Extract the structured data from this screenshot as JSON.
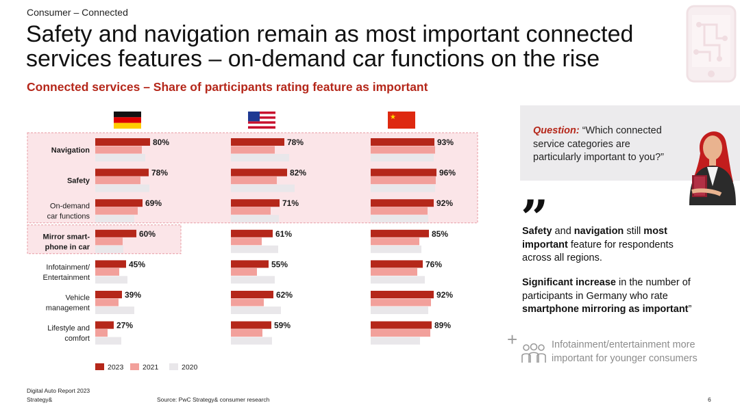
{
  "header": {
    "section": "Consumer – Connected",
    "title_line1": "Safety and navigation remain as most important connected",
    "title_line2": "services features – on-demand car functions on the rise",
    "subtitle": "Connected services – Share of participants rating feature as important"
  },
  "chart_data": {
    "type": "bar",
    "title": "Connected services – Share of participants rating feature as important",
    "categories": [
      [
        "Navigation"
      ],
      [
        "Safety"
      ],
      [
        "On-demand",
        "car functions"
      ],
      [
        "Mirror smart-",
        "phone in car"
      ],
      [
        "Infotainment/",
        "Entertainment"
      ],
      [
        "Vehicle",
        "management"
      ],
      [
        "Lifestyle and",
        "comfort"
      ]
    ],
    "bold_categories": [
      true,
      true,
      false,
      true,
      false,
      false,
      false
    ],
    "unit": "%",
    "legend": [
      "2023",
      "2021",
      "2020"
    ],
    "colors": {
      "2023": "#b5271a",
      "2021": "#f2a09b",
      "2020": "#e9e7ea"
    },
    "panels": [
      {
        "region": "Germany",
        "values_2023": [
          80,
          78,
          69,
          60,
          45,
          39,
          27
        ],
        "values_2021": [
          68,
          66,
          62,
          40,
          35,
          34,
          18
        ],
        "values_2020": [
          73,
          79,
          57,
          41,
          47,
          57,
          38
        ]
      },
      {
        "region": "USA",
        "values_2023": [
          78,
          82,
          71,
          61,
          55,
          62,
          59
        ],
        "values_2021": [
          64,
          67,
          58,
          45,
          38,
          48,
          46
        ],
        "values_2020": [
          85,
          93,
          70,
          69,
          64,
          73,
          60
        ]
      },
      {
        "region": "China",
        "values_2023": [
          93,
          96,
          92,
          85,
          76,
          92,
          89
        ],
        "values_2021": [
          94,
          95,
          83,
          71,
          68,
          88,
          87
        ],
        "values_2020": [
          92,
          94,
          84,
          74,
          79,
          84,
          72
        ]
      }
    ],
    "highlight_rows": [
      0,
      1,
      2
    ],
    "highlight_germany_row": 3
  },
  "question": {
    "label": "Question:",
    "line1": " “Which connected",
    "line2": "service categories are",
    "line3": "particularly important to you?”"
  },
  "insights": {
    "quote": "”",
    "p1_a": "Safety",
    "p1_b": " and ",
    "p1_c": "navigation",
    "p1_d": " still ",
    "p1_e": "most important",
    "p1_f": " feature for respondents across all regions.",
    "p2_a": "Significant increase",
    "p2_b": " in the number of participants in Germany who rate ",
    "p2_c": "smartphone mirroring as important",
    "p2_d": "”",
    "info_plus": "+",
    "info_text": "Infotainment/entertainment more important for younger consumers"
  },
  "footer": {
    "report": "Digital Auto Report 2023",
    "brand": "Strategy&",
    "source": "Source: PwC Strategy& consumer research",
    "page": "6"
  },
  "icons": {
    "device": "smartphone-network-icon",
    "flag_de": "germany-flag-icon",
    "flag_us": "usa-flag-icon",
    "flag_cn": "china-flag-icon",
    "people": "people-group-icon"
  }
}
